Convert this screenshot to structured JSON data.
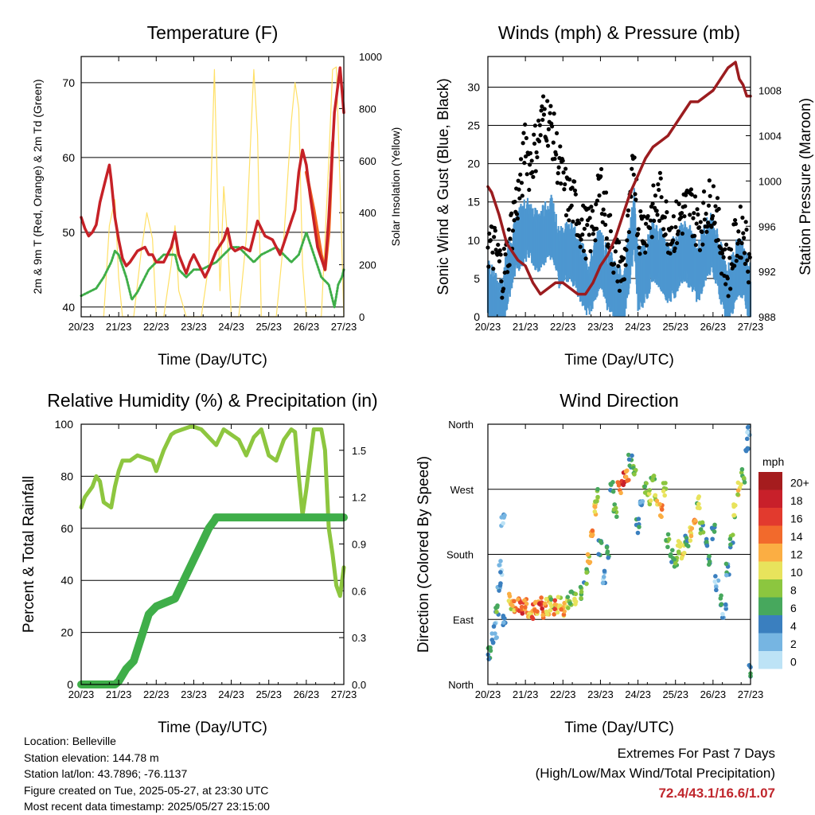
{
  "x_ticks": [
    "20/23",
    "21/23",
    "22/23",
    "23/23",
    "24/23",
    "25/23",
    "26/23",
    "27/23"
  ],
  "x_label": "Time (Day/UTC)",
  "info": {
    "location": "Location: Belleville",
    "elevation": "Station elevation: 144.78 m",
    "latlon": "Station lat/lon: 43.7896; -76.1137",
    "created": "Figure created on Tue, 2025-05-27, at 23:30 UTC",
    "recent": "Most recent data timestamp: 2025/05/27 23:15:00"
  },
  "extremes": {
    "title": "Extremes For Past 7 Days",
    "subtitle": "(High/Low/Max Wind/Total Precipitation)",
    "values": "72.4/43.1/16.6/1.07"
  },
  "colors": {
    "temp2m": "#c62127",
    "temp9m": "#f26522",
    "dewpoint": "#3fae49",
    "solar": "#ffe066",
    "wind": "#4d97d0",
    "gust": "#000000",
    "pressure": "#9b1c1f",
    "rh": "#8dc63f",
    "precip": "#3fae49"
  },
  "chart_data": [
    {
      "type": "line",
      "title": "Temperature (F)",
      "ylabel": "2m & 9m T (Red, Orange) & 2m Td (Green)",
      "y2label": "Solar Insolation (Yellow)",
      "ylim": [
        38.7,
        73.5
      ],
      "y2lim": [
        0,
        1000
      ],
      "yticks": [
        40,
        50,
        60,
        70
      ],
      "y2ticks": [
        0,
        200,
        400,
        600,
        800,
        1000
      ],
      "series": [
        {
          "key": "t2m",
          "axis": "left",
          "x": [
            0,
            0.1,
            0.2,
            0.3,
            0.4,
            0.5,
            0.65,
            0.75,
            0.8,
            0.9,
            1.0,
            1.1,
            1.2,
            1.3,
            1.5,
            1.7,
            1.8,
            1.9,
            2.0,
            2.2,
            2.4,
            2.5,
            2.6,
            2.8,
            2.9,
            3.0,
            3.1,
            3.2,
            3.3,
            3.4,
            3.6,
            3.8,
            3.9,
            4.0,
            4.1,
            4.3,
            4.5,
            4.7,
            4.9,
            5.1,
            5.3,
            5.5,
            5.7,
            5.8,
            5.9,
            6.0,
            6.1,
            6.3,
            6.5,
            6.6,
            6.75,
            6.8,
            6.9,
            7.0
          ],
          "y": [
            52,
            50.5,
            49.5,
            50,
            51,
            54,
            57,
            59,
            57,
            52,
            49,
            46.5,
            45.5,
            46,
            47.5,
            48,
            47,
            47,
            46,
            46,
            48,
            50,
            47,
            44.5,
            46,
            47,
            46,
            45,
            44,
            45,
            47.5,
            49,
            50.5,
            48,
            47.5,
            48,
            47.5,
            51.5,
            49.5,
            49,
            47,
            50,
            53,
            58,
            61,
            59,
            55,
            48,
            45,
            52,
            66,
            68,
            72,
            66
          ]
        },
        {
          "key": "t9m",
          "axis": "left",
          "x": [
            6.0,
            6.2,
            6.4,
            6.5,
            6.6,
            6.7
          ],
          "y": [
            58,
            53,
            47,
            45,
            50,
            62
          ]
        },
        {
          "key": "td",
          "axis": "left",
          "x": [
            0,
            0.2,
            0.4,
            0.6,
            0.8,
            0.9,
            1.0,
            1.2,
            1.35,
            1.5,
            1.7,
            1.8,
            2.0,
            2.2,
            2.3,
            2.5,
            2.6,
            2.8,
            3.0,
            3.2,
            3.4,
            3.6,
            3.8,
            4.0,
            4.2,
            4.4,
            4.6,
            4.8,
            5.0,
            5.2,
            5.4,
            5.6,
            5.8,
            6.0,
            6.2,
            6.4,
            6.6,
            6.75,
            6.85,
            6.95,
            7.0
          ],
          "y": [
            41.5,
            42,
            42.5,
            44,
            46,
            47.5,
            47,
            44,
            41,
            42,
            44,
            45,
            46,
            47,
            47,
            47,
            45,
            44,
            45,
            45,
            45.5,
            46,
            47,
            48,
            48,
            47,
            46,
            47,
            47.5,
            48,
            47,
            46,
            47,
            50,
            47,
            44,
            43,
            40,
            43,
            44,
            45
          ]
        },
        {
          "key": "solar",
          "axis": "right",
          "x": [
            0.6,
            0.75,
            0.9,
            1.0,
            1.1,
            1.2,
            1.4,
            1.6,
            1.75,
            1.9,
            2.0,
            2.2,
            2.4,
            2.5,
            2.6,
            2.8,
            3.0,
            3.2,
            3.4,
            3.55,
            3.7,
            3.8,
            3.9,
            4.0,
            4.2,
            4.4,
            4.6,
            4.7,
            4.8,
            4.9,
            5.2,
            5.4,
            5.6,
            5.7,
            5.8,
            5.9,
            6.0,
            6.2,
            6.4,
            6.6,
            6.7,
            6.8,
            6.9,
            7.0
          ],
          "y": [
            0,
            350,
            450,
            150,
            0,
            0,
            0,
            250,
            400,
            300,
            0,
            0,
            200,
            350,
            100,
            0,
            0,
            0,
            200,
            950,
            100,
            500,
            300,
            0,
            0,
            300,
            950,
            700,
            0,
            0,
            0,
            300,
            750,
            900,
            800,
            200,
            0,
            0,
            0,
            600,
            950,
            960,
            500,
            0
          ]
        }
      ]
    },
    {
      "type": "scatter",
      "title": "Winds (mph) & Pressure (mb)",
      "ylabel": "Sonic Wind & Gust (Blue, Black)",
      "y2label": "Station Pressure (Maroon)",
      "ylim": [
        0,
        34
      ],
      "y2lim": [
        988,
        1011
      ],
      "yticks": [
        0,
        5,
        10,
        15,
        20,
        25,
        30
      ],
      "y2ticks": [
        988,
        992,
        996,
        1000,
        1004,
        1008
      ],
      "series": [
        {
          "key": "pressure",
          "axis": "right",
          "x": [
            0,
            0.1,
            0.3,
            0.5,
            0.8,
            1.0,
            1.2,
            1.4,
            1.6,
            1.8,
            2.0,
            2.2,
            2.4,
            2.6,
            2.8,
            3.0,
            3.2,
            3.4,
            3.6,
            3.8,
            4.0,
            4.2,
            4.4,
            4.6,
            4.8,
            5.0,
            5.2,
            5.4,
            5.6,
            5.8,
            6.0,
            6.2,
            6.4,
            6.6,
            6.7,
            6.8,
            6.9,
            7.0
          ],
          "y": [
            999.5,
            999,
            997,
            994.5,
            993,
            992.5,
            991,
            990,
            990.5,
            991,
            991,
            990.5,
            990,
            990,
            991,
            992.5,
            993.5,
            995,
            997,
            999,
            1000.5,
            1002,
            1003,
            1003.5,
            1004,
            1005,
            1006,
            1007,
            1007,
            1007.5,
            1008,
            1009,
            1010,
            1010.5,
            1009,
            1008.5,
            1007.5,
            1007.5
          ]
        },
        {
          "key": "wind",
          "axis": "left",
          "x": [
            0,
            0.2,
            0.4,
            0.5,
            0.7,
            0.9,
            1.1,
            1.3,
            1.5,
            1.7,
            1.9,
            2.1,
            2.3,
            2.5,
            2.7,
            2.9,
            3.0,
            3.2,
            3.4,
            3.6,
            3.8,
            3.9,
            4.0,
            4.2,
            4.4,
            4.6,
            4.8,
            5.0,
            5.2,
            5.4,
            5.6,
            5.8,
            6.0,
            6.2,
            6.4,
            6.6,
            6.8,
            7.0
          ],
          "y": [
            5,
            3,
            2,
            6,
            10,
            12,
            13,
            11,
            12,
            13,
            9,
            10,
            9,
            7,
            5,
            8,
            9,
            6,
            5,
            3,
            10,
            14,
            6,
            7,
            10,
            9,
            7,
            8,
            10,
            9,
            7,
            10,
            11,
            7,
            4,
            7,
            8,
            4
          ]
        },
        {
          "key": "gust",
          "axis": "left",
          "x": [
            0,
            0.2,
            0.4,
            0.5,
            0.7,
            0.9,
            1.0,
            1.1,
            1.3,
            1.5,
            1.7,
            1.9,
            2.1,
            2.3,
            2.5,
            2.7,
            2.9,
            3.0,
            3.2,
            3.4,
            3.6,
            3.8,
            3.9,
            4.0,
            4.2,
            4.4,
            4.6,
            4.8,
            5.0,
            5.2,
            5.4,
            5.6,
            5.8,
            6.0,
            6.2,
            6.4,
            6.6,
            6.8,
            7.0
          ],
          "y": [
            10,
            9,
            6,
            8,
            14,
            18,
            24,
            20,
            23,
            27,
            25,
            20,
            16,
            15,
            12,
            11,
            14,
            18,
            12,
            8,
            6,
            14,
            22,
            12,
            12,
            14,
            16,
            12,
            12,
            14,
            15,
            12,
            14,
            16,
            10,
            6,
            10,
            12,
            7
          ]
        }
      ]
    },
    {
      "type": "line",
      "title": "Relative Humidity (%) & Precipitation (in)",
      "ylabel": "Percent & Total Rainfall",
      "ylim": [
        0,
        100
      ],
      "y2lim": [
        0,
        1.667
      ],
      "yticks": [
        0,
        20,
        40,
        60,
        80,
        100
      ],
      "y2ticks": [
        "0.0",
        "0.3",
        "0.6",
        "0.9",
        "1.2",
        "1.5"
      ],
      "series": [
        {
          "key": "rh",
          "axis": "left",
          "x": [
            0,
            0.1,
            0.3,
            0.4,
            0.5,
            0.6,
            0.8,
            0.9,
            1.0,
            1.1,
            1.3,
            1.5,
            1.7,
            1.9,
            2.0,
            2.2,
            2.4,
            2.5,
            2.7,
            2.9,
            3.0,
            3.2,
            3.4,
            3.6,
            3.8,
            4.0,
            4.2,
            4.4,
            4.6,
            4.8,
            5.0,
            5.2,
            5.4,
            5.6,
            5.7,
            5.8,
            5.9,
            6.0,
            6.2,
            6.4,
            6.5,
            6.6,
            6.7,
            6.8,
            6.9,
            7.0
          ],
          "y": [
            68,
            72,
            76,
            80,
            78,
            70,
            68,
            76,
            82,
            86,
            86,
            88,
            87,
            86,
            82,
            90,
            96,
            97,
            98,
            99,
            99,
            98,
            95,
            92,
            98,
            96,
            94,
            88,
            95,
            98,
            88,
            86,
            94,
            98,
            97,
            80,
            65,
            75,
            98,
            98,
            90,
            60,
            50,
            38,
            34,
            45
          ]
        },
        {
          "key": "precip",
          "axis": "right",
          "x": [
            0,
            0.5,
            0.9,
            1.0,
            1.2,
            1.4,
            1.6,
            1.8,
            2.0,
            2.2,
            2.5,
            2.6,
            2.8,
            3.0,
            3.2,
            3.4,
            3.55,
            3.6,
            4.0,
            5.0,
            6.0,
            7.0
          ],
          "y": [
            0,
            0,
            0,
            0.02,
            0.1,
            0.15,
            0.3,
            0.45,
            0.5,
            0.52,
            0.55,
            0.6,
            0.7,
            0.8,
            0.9,
            1.0,
            1.05,
            1.07,
            1.07,
            1.07,
            1.07,
            1.07
          ]
        }
      ]
    },
    {
      "type": "scatter",
      "title": "Wind Direction",
      "ylabel": "Direction (Colored By Speed)",
      "yticks": [
        "North",
        "East",
        "South",
        "West",
        "North"
      ],
      "legend_title": "mph",
      "legend_labels": [
        "20+",
        "18",
        "16",
        "14",
        "12",
        "10",
        "8",
        "6",
        "4",
        "2",
        "0"
      ],
      "legend_colors": [
        "#a51c1e",
        "#c8202a",
        "#e23a2e",
        "#f26a2c",
        "#fbae43",
        "#e8e35c",
        "#8cc63f",
        "#47a85d",
        "#3a7fbf",
        "#76b5e2",
        "#bde3f6"
      ],
      "points": [
        [
          0.05,
          45,
          4
        ],
        [
          0.1,
          60,
          3
        ],
        [
          0.2,
          75,
          2
        ],
        [
          0.25,
          100,
          5
        ],
        [
          0.3,
          130,
          3
        ],
        [
          0.35,
          160,
          2
        ],
        [
          0.4,
          230,
          2
        ],
        [
          0.45,
          90,
          4
        ],
        [
          0.6,
          115,
          10
        ],
        [
          0.7,
          108,
          12
        ],
        [
          0.8,
          112,
          14
        ],
        [
          0.9,
          105,
          16
        ],
        [
          1.0,
          110,
          12
        ],
        [
          1.1,
          104,
          10
        ],
        [
          1.2,
          100,
          14
        ],
        [
          1.3,
          106,
          12
        ],
        [
          1.4,
          110,
          16
        ],
        [
          1.5,
          103,
          12
        ],
        [
          1.6,
          108,
          10
        ],
        [
          1.7,
          112,
          8
        ],
        [
          1.8,
          106,
          14
        ],
        [
          1.9,
          110,
          10
        ],
        [
          2.0,
          104,
          12
        ],
        [
          2.1,
          112,
          8
        ],
        [
          2.2,
          118,
          6
        ],
        [
          2.3,
          115,
          8
        ],
        [
          2.5,
          125,
          6
        ],
        [
          2.6,
          150,
          6
        ],
        [
          2.7,
          175,
          10
        ],
        [
          2.8,
          210,
          12
        ],
        [
          2.85,
          240,
          10
        ],
        [
          2.9,
          260,
          8
        ],
        [
          3.0,
          190,
          4
        ],
        [
          3.1,
          150,
          2
        ],
        [
          3.2,
          180,
          4
        ],
        [
          3.3,
          270,
          6
        ],
        [
          3.4,
          240,
          8
        ],
        [
          3.5,
          270,
          12
        ],
        [
          3.6,
          285,
          16
        ],
        [
          3.7,
          290,
          12
        ],
        [
          3.8,
          310,
          4
        ],
        [
          3.9,
          300,
          6
        ],
        [
          4.0,
          220,
          4
        ],
        [
          4.1,
          250,
          2
        ],
        [
          4.2,
          270,
          6
        ],
        [
          4.3,
          260,
          8
        ],
        [
          4.4,
          285,
          6
        ],
        [
          4.5,
          255,
          10
        ],
        [
          4.6,
          240,
          12
        ],
        [
          4.7,
          270,
          8
        ],
        [
          4.8,
          200,
          6
        ],
        [
          4.9,
          175,
          4
        ],
        [
          5.0,
          165,
          6
        ],
        [
          5.1,
          190,
          8
        ],
        [
          5.2,
          185,
          10
        ],
        [
          5.3,
          200,
          6
        ],
        [
          5.4,
          210,
          10
        ],
        [
          5.5,
          230,
          12
        ],
        [
          5.6,
          250,
          8
        ],
        [
          5.7,
          220,
          6
        ],
        [
          5.8,
          190,
          4
        ],
        [
          5.9,
          170,
          4
        ],
        [
          6.0,
          210,
          4
        ],
        [
          6.1,
          140,
          2
        ],
        [
          6.2,
          120,
          4
        ],
        [
          6.3,
          100,
          2
        ],
        [
          6.4,
          160,
          4
        ],
        [
          6.5,
          200,
          6
        ],
        [
          6.6,
          240,
          8
        ],
        [
          6.7,
          270,
          10
        ],
        [
          6.8,
          290,
          6
        ],
        [
          6.9,
          320,
          4
        ],
        [
          6.95,
          350,
          2
        ],
        [
          7.0,
          20,
          4
        ]
      ]
    }
  ]
}
